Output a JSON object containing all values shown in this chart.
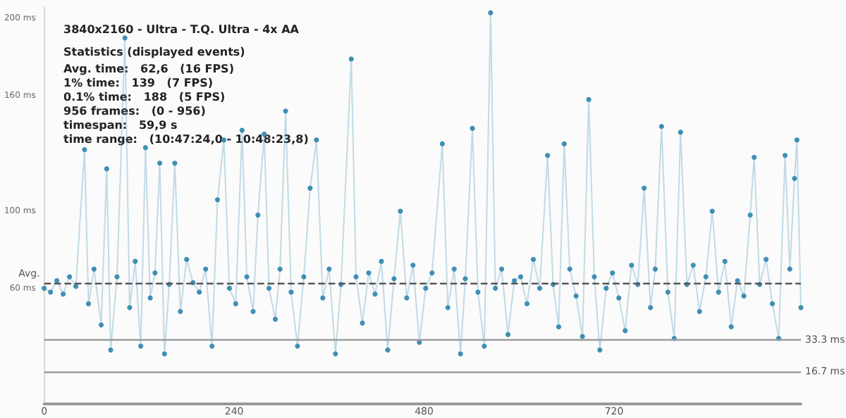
{
  "chart_data": {
    "type": "line",
    "subtitle": "3840x2160 - Ultra - T.Q. Ultra - 4x AA",
    "annotations": [
      "Statistics (displayed events)",
      "Avg. time:   62,6   (16 FPS)",
      "1% time:   139   (7 FPS)",
      "0.1% time:   188   (5 FPS)",
      "956 frames:   (0 - 956)",
      "timespan:   59,9 s",
      "time range:   (10:47:24,0 - 10:48:23,8)"
    ],
    "x": [
      0,
      8,
      16,
      24,
      32,
      40,
      51,
      56,
      63,
      72,
      79,
      84,
      92,
      102,
      108,
      115,
      122,
      128,
      134,
      140,
      146,
      152,
      158,
      165,
      172,
      180,
      188,
      196,
      204,
      212,
      219,
      227,
      234,
      242,
      250,
      256,
      264,
      270,
      278,
      284,
      292,
      298,
      305,
      312,
      320,
      328,
      336,
      344,
      352,
      360,
      368,
      375,
      388,
      394,
      402,
      410,
      418,
      426,
      434,
      442,
      450,
      458,
      466,
      474,
      482,
      490,
      503,
      510,
      518,
      526,
      532,
      541,
      548,
      556,
      564,
      570,
      578,
      586,
      594,
      602,
      610,
      618,
      626,
      636,
      643,
      650,
      657,
      664,
      672,
      680,
      688,
      695,
      702,
      710,
      718,
      726,
      734,
      742,
      750,
      758,
      766,
      772,
      780,
      788,
      796,
      804,
      812,
      820,
      828,
      836,
      844,
      852,
      860,
      868,
      876,
      884,
      892,
      897,
      904,
      912,
      920,
      928,
      936,
      942,
      948,
      951,
      956
    ],
    "series": [
      {
        "color": "#3f8fb5",
        "values": [
          60,
          58,
          64,
          57,
          66,
          61,
          132,
          52,
          70,
          41,
          122,
          28,
          66,
          190,
          50,
          74,
          30,
          133,
          55,
          68,
          125,
          26,
          62,
          125,
          48,
          75,
          63,
          58,
          70,
          30,
          106,
          137,
          60,
          52,
          142,
          66,
          48,
          98,
          140,
          60,
          44,
          70,
          152,
          58,
          30,
          66,
          112,
          137,
          55,
          70,
          26,
          62,
          179,
          66,
          42,
          68,
          57,
          74,
          28,
          65,
          100,
          55,
          72,
          32,
          60,
          68,
          135,
          50,
          70,
          26,
          65,
          143,
          58,
          30,
          203,
          60,
          70,
          36,
          64,
          66,
          52,
          75,
          60,
          129,
          62,
          40,
          135,
          70,
          56,
          35,
          158,
          66,
          28,
          60,
          68,
          55,
          38,
          72,
          62,
          112,
          50,
          70,
          144,
          58,
          34,
          141,
          62,
          72,
          48,
          66,
          100,
          58,
          74,
          40,
          64,
          56,
          98,
          128,
          62,
          75,
          52,
          34,
          129,
          70,
          117,
          137,
          50
        ]
      }
    ],
    "xlim": [
      0,
      956
    ],
    "xticks": [
      0,
      240,
      480,
      720
    ],
    "ylim": [
      0,
      206
    ],
    "yticks": [
      {
        "value": 60,
        "label": "60 ms"
      },
      {
        "value": 100,
        "label": "100 ms"
      },
      {
        "value": 160,
        "label": "160 ms"
      },
      {
        "value": 200,
        "label": "200 ms"
      }
    ],
    "ref_lines": [
      {
        "axis": "y",
        "value": 62.6,
        "label": "Avg.",
        "line_style": "dashed",
        "color": "#555555"
      },
      {
        "axis": "y",
        "value": 33.3,
        "label": "33.3 ms",
        "line_style": "solid",
        "color": "#9a9a9a"
      },
      {
        "axis": "y",
        "value": 16.7,
        "label": "16.7 ms",
        "line_style": "solid",
        "color": "#9a9a9a"
      }
    ],
    "grid": false,
    "marker": "circle",
    "line_style": "solid"
  }
}
